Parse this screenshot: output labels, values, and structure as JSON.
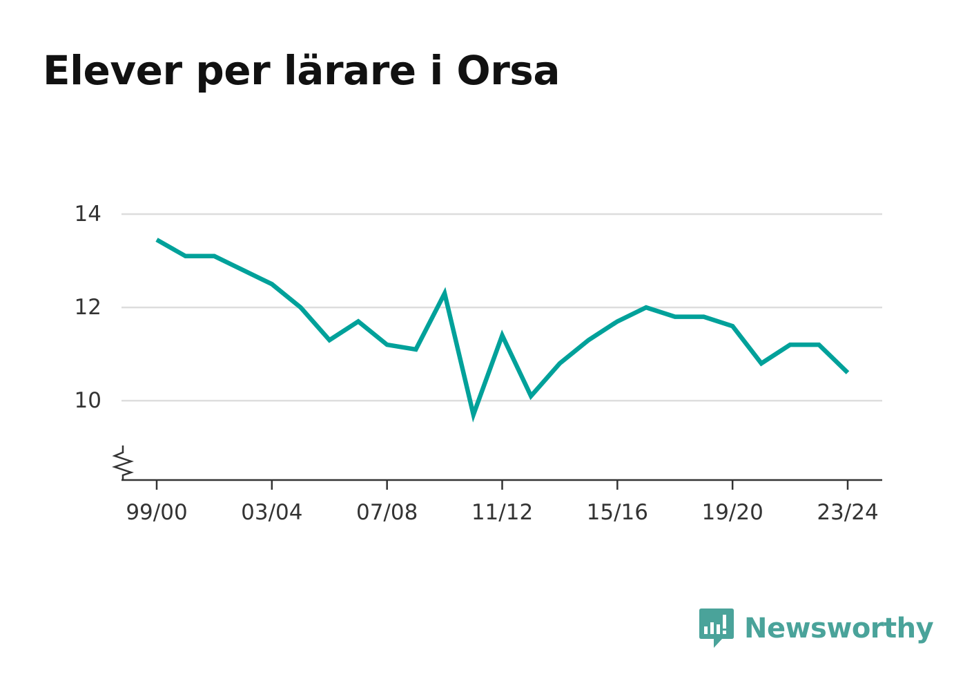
{
  "chart_data": {
    "type": "line",
    "title": "Elever per lärare i Orsa",
    "xlabel": "",
    "ylabel": "",
    "x": [
      "99/00",
      "00/01",
      "01/02",
      "02/03",
      "03/04",
      "04/05",
      "05/06",
      "06/07",
      "07/08",
      "08/09",
      "09/10",
      "10/11",
      "11/12",
      "12/13",
      "13/14",
      "14/15",
      "15/16",
      "16/17",
      "17/18",
      "18/19",
      "19/20",
      "20/21",
      "21/22",
      "22/23",
      "23/24"
    ],
    "series": [
      {
        "values": [
          13.45,
          13.1,
          13.1,
          12.8,
          12.5,
          12.0,
          11.3,
          11.7,
          11.2,
          11.1,
          12.3,
          9.7,
          11.4,
          10.1,
          10.8,
          11.3,
          11.7,
          12.0,
          11.8,
          11.8,
          11.6,
          10.8,
          11.2,
          11.2,
          10.6
        ]
      }
    ],
    "x_tick_labels": [
      "99/00",
      "03/04",
      "07/08",
      "11/12",
      "15/16",
      "19/20",
      "23/24"
    ],
    "y_ticks": [
      10,
      12,
      14
    ],
    "ylim": [
      8.3,
      14
    ],
    "y_axis_break": true,
    "grid": true,
    "line_color": "#00a19a"
  },
  "brand": {
    "name": "Newsworthy",
    "color": "#4aa39a"
  }
}
